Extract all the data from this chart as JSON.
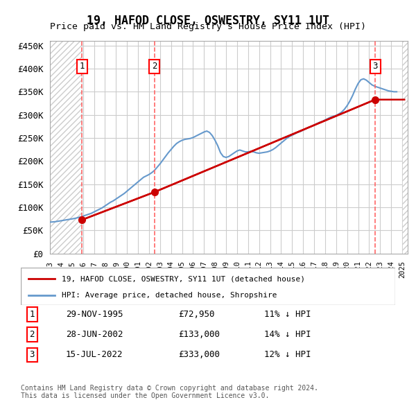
{
  "title": "19, HAFOD CLOSE, OSWESTRY, SY11 1UT",
  "subtitle": "Price paid vs. HM Land Registry's House Price Index (HPI)",
  "ylabel": "",
  "xlim_start": 1993.0,
  "xlim_end": 2025.5,
  "ylim_min": 0,
  "ylim_max": 460000,
  "yticks": [
    0,
    50000,
    100000,
    150000,
    200000,
    250000,
    300000,
    350000,
    400000,
    450000
  ],
  "ytick_labels": [
    "£0",
    "£50K",
    "£100K",
    "£150K",
    "£200K",
    "£250K",
    "£300K",
    "£350K",
    "£400K",
    "£450K"
  ],
  "xticks": [
    1993,
    1994,
    1995,
    1996,
    1997,
    1998,
    1999,
    2000,
    2001,
    2002,
    2003,
    2004,
    2005,
    2006,
    2007,
    2008,
    2009,
    2010,
    2011,
    2012,
    2013,
    2014,
    2015,
    2016,
    2017,
    2018,
    2019,
    2020,
    2021,
    2022,
    2023,
    2024,
    2025
  ],
  "hpi_color": "#6699cc",
  "price_color": "#cc0000",
  "marker_color": "#cc0000",
  "vline_color": "#ff6666",
  "hatch_color": "#cccccc",
  "grid_color": "#cccccc",
  "purchases": [
    {
      "year": 1995.91,
      "price": 72950,
      "label": "1"
    },
    {
      "year": 2002.49,
      "price": 133000,
      "label": "2"
    },
    {
      "year": 2022.54,
      "price": 333000,
      "label": "3"
    }
  ],
  "legend_line1": "19, HAFOD CLOSE, OSWESTRY, SY11 1UT (detached house)",
  "legend_line2": "HPI: Average price, detached house, Shropshire",
  "table_rows": [
    {
      "num": "1",
      "date": "29-NOV-1995",
      "price": "£72,950",
      "pct": "11% ↓ HPI"
    },
    {
      "num": "2",
      "date": "28-JUN-2002",
      "price": "£133,000",
      "pct": "14% ↓ HPI"
    },
    {
      "num": "3",
      "date": "15-JUL-2022",
      "price": "£333,000",
      "pct": "12% ↓ HPI"
    }
  ],
  "footer": "Contains HM Land Registry data © Crown copyright and database right 2024.\nThis data is licensed under the Open Government Licence v3.0.",
  "hpi_data_x": [
    1993.0,
    1993.25,
    1993.5,
    1993.75,
    1994.0,
    1994.25,
    1994.5,
    1994.75,
    1995.0,
    1995.25,
    1995.5,
    1995.75,
    1996.0,
    1996.25,
    1996.5,
    1996.75,
    1997.0,
    1997.25,
    1997.5,
    1997.75,
    1998.0,
    1998.25,
    1998.5,
    1998.75,
    1999.0,
    1999.25,
    1999.5,
    1999.75,
    2000.0,
    2000.25,
    2000.5,
    2000.75,
    2001.0,
    2001.25,
    2001.5,
    2001.75,
    2002.0,
    2002.25,
    2002.5,
    2002.75,
    2003.0,
    2003.25,
    2003.5,
    2003.75,
    2004.0,
    2004.25,
    2004.5,
    2004.75,
    2005.0,
    2005.25,
    2005.5,
    2005.75,
    2006.0,
    2006.25,
    2006.5,
    2006.75,
    2007.0,
    2007.25,
    2007.5,
    2007.75,
    2008.0,
    2008.25,
    2008.5,
    2008.75,
    2009.0,
    2009.25,
    2009.5,
    2009.75,
    2010.0,
    2010.25,
    2010.5,
    2010.75,
    2011.0,
    2011.25,
    2011.5,
    2011.75,
    2012.0,
    2012.25,
    2012.5,
    2012.75,
    2013.0,
    2013.25,
    2013.5,
    2013.75,
    2014.0,
    2014.25,
    2014.5,
    2014.75,
    2015.0,
    2015.25,
    2015.5,
    2015.75,
    2016.0,
    2016.25,
    2016.5,
    2016.75,
    2017.0,
    2017.25,
    2017.5,
    2017.75,
    2018.0,
    2018.25,
    2018.5,
    2018.75,
    2019.0,
    2019.25,
    2019.5,
    2019.75,
    2020.0,
    2020.25,
    2020.5,
    2020.75,
    2021.0,
    2021.25,
    2021.5,
    2021.75,
    2022.0,
    2022.25,
    2022.5,
    2022.75,
    2023.0,
    2023.25,
    2023.5,
    2023.75,
    2024.0,
    2024.25,
    2024.5
  ],
  "hpi_data_y": [
    68000,
    68500,
    69000,
    70000,
    71000,
    72000,
    73000,
    74000,
    75000,
    76000,
    77500,
    79000,
    81000,
    83000,
    85000,
    87000,
    90000,
    93000,
    96000,
    99000,
    103000,
    107000,
    111000,
    114000,
    118000,
    122000,
    126000,
    130000,
    135000,
    140000,
    145000,
    150000,
    155000,
    160000,
    165000,
    168000,
    171000,
    175000,
    180000,
    187000,
    194000,
    202000,
    210000,
    218000,
    225000,
    232000,
    238000,
    242000,
    245000,
    247000,
    248000,
    249000,
    251000,
    254000,
    257000,
    260000,
    263000,
    265000,
    262000,
    255000,
    245000,
    233000,
    218000,
    210000,
    208000,
    210000,
    214000,
    218000,
    222000,
    224000,
    222000,
    220000,
    220000,
    221000,
    220000,
    218000,
    217000,
    218000,
    219000,
    220000,
    222000,
    225000,
    229000,
    234000,
    239000,
    244000,
    249000,
    253000,
    256000,
    259000,
    262000,
    264000,
    267000,
    270000,
    273000,
    275000,
    278000,
    281000,
    284000,
    286000,
    289000,
    292000,
    295000,
    297000,
    299000,
    302000,
    306000,
    312000,
    320000,
    330000,
    342000,
    356000,
    368000,
    376000,
    378000,
    375000,
    370000,
    365000,
    362000,
    360000,
    358000,
    356000,
    354000,
    352000,
    351000,
    350000,
    350000
  ],
  "price_line_x": [
    1995.91,
    2002.49,
    2022.54
  ],
  "price_line_y": [
    72950,
    133000,
    333000
  ],
  "hatch_end_year": 1995.91,
  "hatch_end_year2": 2025.5
}
